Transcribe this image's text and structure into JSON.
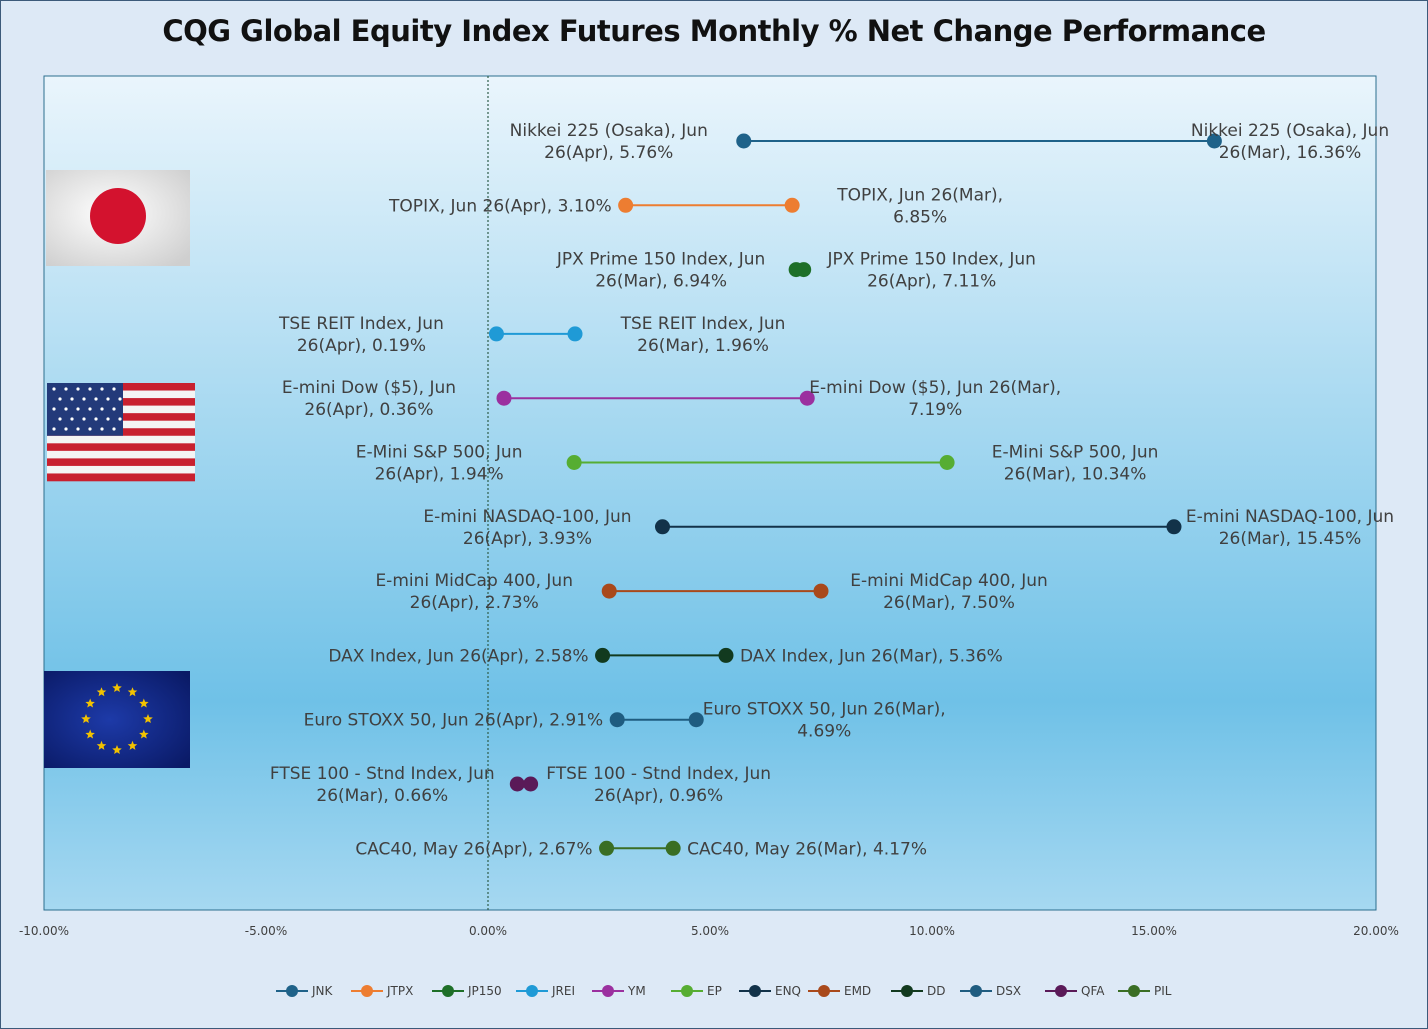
{
  "title": "CQG Global Equity Index Futures Monthly % Net Change Performance",
  "chart_data": {
    "type": "dumbbell",
    "title": "CQG Global Equity Index Futures Monthly % Net Change Performance",
    "xlim": [
      -10,
      20
    ],
    "x_ticks": [
      "-10.00%",
      "-5.00%",
      "0.00%",
      "5.00%",
      "10.00%",
      "15.00%",
      "20.00%"
    ],
    "x_tick_values": [
      -10,
      -5,
      0,
      5,
      10,
      15,
      20
    ],
    "grid": false,
    "legend_position": "bottom",
    "zero_line": "dotted",
    "series": [
      {
        "name": "JNK",
        "color": "#1f6289",
        "points": [
          {
            "x": 16.36,
            "label": [
              "Nikkei 225 (Osaka), Jun",
              "26(Mar), 16.36%"
            ]
          },
          {
            "x": 5.76,
            "label": [
              "Nikkei 225 (Osaka), Jun",
              "26(Apr), 5.76%"
            ]
          }
        ]
      },
      {
        "name": "JTPX",
        "color": "#ed7d31",
        "points": [
          {
            "x": 6.85,
            "label": [
              "TOPIX, Jun 26(Mar),",
              "6.85%"
            ]
          },
          {
            "x": 3.1,
            "label": [
              "TOPIX, Jun 26(Apr), 3.10%"
            ]
          }
        ]
      },
      {
        "name": "JP150",
        "color": "#1e6f28",
        "points": [
          {
            "x": 6.94,
            "label": [
              "JPX Prime 150 Index, Jun",
              "26(Mar), 6.94%"
            ]
          },
          {
            "x": 7.11,
            "label": [
              "JPX Prime 150 Index, Jun",
              "26(Apr), 7.11%"
            ]
          }
        ]
      },
      {
        "name": "JREI",
        "color": "#1f9ad6",
        "points": [
          {
            "x": 1.96,
            "label": [
              "TSE REIT Index, Jun",
              "26(Mar), 1.96%"
            ]
          },
          {
            "x": 0.19,
            "label": [
              "TSE REIT Index, Jun",
              "26(Apr), 0.19%"
            ]
          }
        ]
      },
      {
        "name": "YM",
        "color": "#9b309f",
        "points": [
          {
            "x": 7.19,
            "label": [
              "E-mini Dow ($5), Jun 26(Mar),",
              "7.19%"
            ]
          },
          {
            "x": 0.36,
            "label": [
              "E-mini Dow ($5), Jun",
              "26(Apr), 0.36%"
            ]
          }
        ]
      },
      {
        "name": "EP",
        "color": "#56ad32",
        "points": [
          {
            "x": 10.34,
            "label": [
              "E-Mini S&P 500, Jun",
              "26(Mar), 10.34%"
            ]
          },
          {
            "x": 1.94,
            "label": [
              "E-Mini S&P 500, Jun",
              "26(Apr), 1.94%"
            ]
          }
        ]
      },
      {
        "name": "ENQ",
        "color": "#123249",
        "points": [
          {
            "x": 15.45,
            "label": [
              "E-mini NASDAQ-100, Jun",
              "26(Mar), 15.45%"
            ]
          },
          {
            "x": 3.93,
            "label": [
              "E-mini NASDAQ-100, Jun",
              "26(Apr), 3.93%"
            ]
          }
        ]
      },
      {
        "name": "EMD",
        "color": "#a9491b",
        "points": [
          {
            "x": 7.5,
            "label": [
              "E-mini MidCap 400, Jun",
              "26(Mar), 7.50%"
            ]
          },
          {
            "x": 2.73,
            "label": [
              "E-mini MidCap 400, Jun",
              "26(Apr), 2.73%"
            ]
          }
        ]
      },
      {
        "name": "DD",
        "color": "#123a1f",
        "points": [
          {
            "x": 5.36,
            "label": [
              "DAX Index, Jun 26(Mar), 5.36%"
            ]
          },
          {
            "x": 2.58,
            "label": [
              "DAX Index, Jun 26(Apr), 2.58%"
            ]
          }
        ]
      },
      {
        "name": "DSX",
        "color": "#1f5c80",
        "points": [
          {
            "x": 4.69,
            "label": [
              "Euro STOXX 50, Jun 26(Mar),",
              "4.69%"
            ]
          },
          {
            "x": 2.91,
            "label": [
              "Euro STOXX 50, Jun 26(Apr), 2.91%"
            ]
          }
        ]
      },
      {
        "name": "QFA",
        "color": "#5a1a58",
        "points": [
          {
            "x": 0.66,
            "label": [
              "FTSE 100 - Stnd Index, Jun",
              "26(Mar), 0.66%"
            ]
          },
          {
            "x": 0.96,
            "label": [
              "FTSE 100 - Stnd Index, Jun",
              "26(Apr), 0.96%"
            ]
          }
        ]
      },
      {
        "name": "PIL",
        "color": "#3a6e24",
        "points": [
          {
            "x": 4.17,
            "label": [
              "CAC40, May 26(Mar), 4.17%"
            ]
          },
          {
            "x": 2.67,
            "label": [
              "CAC40, May 26(Apr), 2.67%"
            ]
          }
        ]
      }
    ]
  },
  "flags": [
    {
      "name": "japan-flag",
      "country": "Japan"
    },
    {
      "name": "usa-flag",
      "country": "United States"
    },
    {
      "name": "eu-flag",
      "country": "European Union"
    }
  ]
}
